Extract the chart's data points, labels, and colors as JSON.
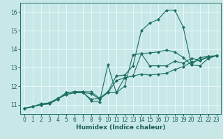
{
  "xlabel": "Humidex (Indice chaleur)",
  "xlim": [
    -0.5,
    23.5
  ],
  "ylim": [
    10.5,
    16.5
  ],
  "yticks": [
    11,
    12,
    13,
    14,
    15,
    16
  ],
  "xticks": [
    0,
    1,
    2,
    3,
    4,
    5,
    6,
    7,
    8,
    9,
    10,
    11,
    12,
    13,
    14,
    15,
    16,
    17,
    18,
    19,
    20,
    21,
    22,
    23
  ],
  "bg_color": "#c8e8e8",
  "grid_color": "#e8f8f8",
  "line_color": "#1a6e60",
  "curves": [
    {
      "x": [
        0,
        1,
        2,
        3,
        4,
        5,
        6,
        7,
        8,
        9,
        10,
        11,
        12,
        13,
        14,
        15,
        16,
        17,
        18,
        19,
        20,
        21,
        22,
        23
      ],
      "y": [
        10.8,
        10.9,
        11.0,
        11.05,
        11.3,
        11.65,
        11.7,
        11.7,
        11.7,
        11.35,
        11.7,
        12.55,
        12.6,
        13.1,
        15.0,
        15.4,
        15.6,
        16.1,
        16.1,
        15.2,
        13.15,
        13.55,
        13.6,
        13.65
      ]
    },
    {
      "x": [
        0,
        1,
        2,
        3,
        4,
        5,
        6,
        7,
        8,
        9,
        10,
        11,
        12,
        13,
        14,
        15,
        16,
        17,
        18,
        19,
        20,
        21,
        22,
        23
      ],
      "y": [
        10.8,
        10.9,
        11.0,
        11.05,
        11.3,
        11.65,
        11.7,
        11.7,
        11.2,
        11.15,
        13.15,
        11.65,
        12.0,
        13.7,
        13.75,
        13.1,
        13.1,
        13.1,
        13.35,
        13.25,
        13.5,
        13.4,
        13.6,
        13.65
      ]
    },
    {
      "x": [
        0,
        1,
        2,
        3,
        4,
        5,
        6,
        7,
        8,
        9,
        10,
        11,
        12,
        13,
        14,
        15,
        16,
        17,
        18,
        19,
        20,
        21,
        22,
        23
      ],
      "y": [
        10.8,
        10.9,
        11.0,
        11.1,
        11.3,
        11.55,
        11.65,
        11.65,
        11.6,
        11.3,
        11.65,
        12.3,
        12.45,
        12.55,
        13.75,
        13.8,
        13.85,
        13.95,
        13.85,
        13.55,
        13.15,
        13.1,
        13.5,
        13.65
      ]
    },
    {
      "x": [
        0,
        1,
        2,
        3,
        4,
        5,
        6,
        7,
        8,
        9,
        10,
        11,
        12,
        13,
        14,
        15,
        16,
        17,
        18,
        19,
        20,
        21,
        22,
        23
      ],
      "y": [
        10.8,
        10.9,
        11.05,
        11.1,
        11.35,
        11.55,
        11.65,
        11.65,
        11.3,
        11.35,
        11.65,
        11.65,
        12.45,
        12.55,
        12.65,
        12.6,
        12.65,
        12.7,
        12.9,
        13.05,
        13.3,
        13.4,
        13.55,
        13.65
      ]
    }
  ]
}
